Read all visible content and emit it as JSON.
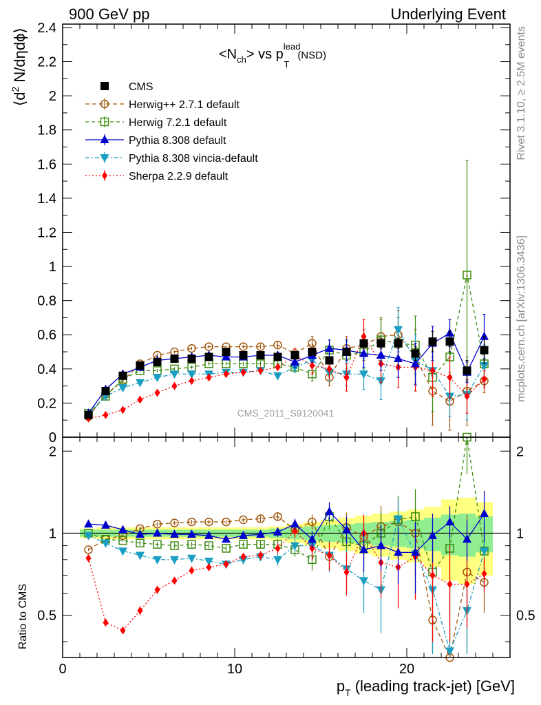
{
  "header": {
    "left": "900 GeV pp",
    "right": "Underlying Event"
  },
  "side_text": {
    "top": "Rivet 3.1.10, ≥ 2.5M events",
    "bottom": "mcplots.cern.ch [arXiv:1306.3436]"
  },
  "watermark": "CMS_2011_S9120041",
  "chart_data": {
    "type": "scatter",
    "title": {
      "main": "<N",
      "sub1": "ch",
      "mid": "> vs p",
      "sup": "lead",
      "sub2": "T",
      "tail": "(NSD)"
    },
    "xlabel": {
      "p": "p",
      "sub": "T",
      "rest": "(leading track-jet) [GeV]"
    },
    "ylabel": {
      "open": "⟨d",
      "sup": "2",
      "rest": " N/dηdϕ⟩"
    },
    "ratio_ylabel": "Ratio to CMS",
    "xlim": [
      0,
      26
    ],
    "ylim": [
      0,
      2.42
    ],
    "ratio_ylim": [
      0.35,
      2.25
    ],
    "legend_position": "top-left",
    "x_ticks": [
      "0",
      "10",
      "20"
    ],
    "y_ticks": [
      "0",
      "0.2",
      "0.4",
      "0.6",
      "0.8",
      "1",
      "1.2",
      "1.4",
      "1.6",
      "1.8",
      "2",
      "2.2",
      "2.4"
    ],
    "ratio_ticks": [
      "0.5",
      "1",
      "2"
    ],
    "x": [
      1.5,
      2.5,
      3.5,
      4.5,
      5.5,
      6.5,
      7.5,
      8.5,
      9.5,
      10.5,
      11.5,
      12.5,
      13.5,
      14.5,
      15.5,
      16.5,
      17.5,
      18.5,
      19.5,
      20.5,
      21.5,
      22.5,
      23.5,
      24.5
    ],
    "series": [
      {
        "name": "CMS",
        "color": "#000000",
        "marker": "square-filled",
        "dash": "",
        "values": [
          0.13,
          0.27,
          0.36,
          0.42,
          0.44,
          0.46,
          0.46,
          0.47,
          0.5,
          0.48,
          0.48,
          0.47,
          0.48,
          0.5,
          0.45,
          0.5,
          0.55,
          0.55,
          0.55,
          0.49,
          0.56,
          0.56,
          0.39,
          0.51
        ],
        "errors": [
          0.005,
          0.01,
          0.01,
          0.01,
          0.01,
          0.01,
          0.01,
          0.01,
          0.01,
          0.01,
          0.01,
          0.01,
          0.015,
          0.02,
          0.02,
          0.02,
          0.02,
          0.03,
          0.03,
          0.04,
          0.06,
          0.06,
          0.06,
          0.08
        ],
        "ratio": null,
        "band_inner": [
          0.03,
          0.03,
          0.03,
          0.03,
          0.03,
          0.03,
          0.03,
          0.03,
          0.03,
          0.03,
          0.03,
          0.04,
          0.05,
          0.06,
          0.07,
          0.08,
          0.09,
          0.1,
          0.11,
          0.12,
          0.14,
          0.17,
          0.18,
          0.15
        ],
        "band_outer": [
          0.04,
          0.05,
          0.05,
          0.05,
          0.05,
          0.05,
          0.05,
          0.05,
          0.05,
          0.05,
          0.05,
          0.06,
          0.08,
          0.1,
          0.12,
          0.14,
          0.16,
          0.18,
          0.2,
          0.22,
          0.25,
          0.33,
          0.35,
          0.3
        ]
      },
      {
        "name": "Herwig++ 2.7.1 default",
        "color": "#a0550b",
        "marker": "circle-open",
        "dash": "6,4",
        "values": [
          0.12,
          0.25,
          0.33,
          0.43,
          0.48,
          0.5,
          0.52,
          0.53,
          0.53,
          0.53,
          0.53,
          0.54,
          0.49,
          0.55,
          0.35,
          0.52,
          0.54,
          0.59,
          0.6,
          0.47,
          0.27,
          0.21,
          0.27,
          0.33
        ],
        "errors": [
          0.005,
          0.008,
          0.01,
          0.01,
          0.01,
          0.01,
          0.01,
          0.01,
          0.01,
          0.012,
          0.015,
          0.02,
          0.03,
          0.04,
          0.05,
          0.07,
          0.09,
          0.11,
          0.14,
          0.16,
          0.2,
          0.17,
          0.2,
          0.07
        ],
        "ratio": [
          0.87,
          0.95,
          0.98,
          1.04,
          1.08,
          1.09,
          1.1,
          1.1,
          1.1,
          1.12,
          1.13,
          1.15,
          1.03,
          1.1,
          0.82,
          1.05,
          0.97,
          1.06,
          1.1,
          1.0,
          0.48,
          0.35,
          0.72,
          0.66
        ],
        "ratio_err": [
          0.01,
          0.01,
          0.01,
          0.02,
          0.02,
          0.02,
          0.02,
          0.02,
          0.02,
          0.02,
          0.03,
          0.04,
          0.05,
          0.07,
          0.1,
          0.14,
          0.17,
          0.2,
          0.25,
          0.3,
          0.36,
          0.3,
          0.45,
          0.15
        ]
      },
      {
        "name": "Herwig 7.2.1 default",
        "color": "#3a8a0e",
        "marker": "square-open",
        "dash": "5,4",
        "values": [
          0.14,
          0.24,
          0.34,
          0.39,
          0.39,
          0.4,
          0.41,
          0.43,
          0.43,
          0.43,
          0.43,
          0.43,
          0.41,
          0.37,
          0.51,
          0.48,
          0.5,
          0.57,
          0.55,
          0.54,
          0.35,
          0.47,
          0.95,
          0.43
        ],
        "errors": [
          0.005,
          0.008,
          0.01,
          0.01,
          0.01,
          0.01,
          0.01,
          0.01,
          0.01,
          0.012,
          0.015,
          0.02,
          0.03,
          0.04,
          0.06,
          0.08,
          0.1,
          0.12,
          0.15,
          0.17,
          0.2,
          0.22,
          0.67,
          0.1
        ],
        "ratio": [
          1.0,
          0.95,
          0.94,
          0.92,
          0.91,
          0.9,
          0.91,
          0.9,
          0.88,
          0.91,
          0.91,
          0.91,
          0.87,
          0.8,
          1.15,
          0.93,
          0.9,
          1.0,
          1.12,
          1.15,
          0.72,
          0.88,
          2.25,
          0.86
        ],
        "ratio_err": [
          0.01,
          0.01,
          0.01,
          0.02,
          0.02,
          0.02,
          0.02,
          0.02,
          0.02,
          0.02,
          0.03,
          0.04,
          0.05,
          0.07,
          0.12,
          0.15,
          0.18,
          0.2,
          0.25,
          0.3,
          0.35,
          0.38,
          0.6,
          0.2
        ]
      },
      {
        "name": "Pythia 8.308 default",
        "color": "#0000cc",
        "marker": "triangle-up",
        "dash": "",
        "values": [
          0.14,
          0.28,
          0.37,
          0.41,
          0.45,
          0.46,
          0.47,
          0.48,
          0.47,
          0.47,
          0.48,
          0.48,
          0.44,
          0.48,
          0.52,
          0.51,
          0.49,
          0.48,
          0.46,
          0.43,
          0.55,
          0.61,
          0.38,
          0.59
        ],
        "errors": [
          0.005,
          0.008,
          0.01,
          0.01,
          0.01,
          0.01,
          0.01,
          0.01,
          0.01,
          0.012,
          0.015,
          0.02,
          0.03,
          0.04,
          0.05,
          0.06,
          0.08,
          0.09,
          0.11,
          0.12,
          0.1,
          0.08,
          0.06,
          0.13
        ],
        "ratio": [
          1.08,
          1.07,
          1.03,
          0.99,
          1.0,
          0.99,
          0.99,
          0.98,
          0.95,
          0.98,
          0.99,
          1.01,
          1.08,
          0.95,
          1.2,
          1.03,
          0.87,
          0.9,
          0.85,
          0.85,
          0.98,
          1.1,
          0.95,
          1.18
        ],
        "ratio_err": [
          0.01,
          0.01,
          0.01,
          0.02,
          0.02,
          0.02,
          0.02,
          0.02,
          0.02,
          0.02,
          0.03,
          0.04,
          0.05,
          0.07,
          0.1,
          0.12,
          0.15,
          0.17,
          0.2,
          0.25,
          0.2,
          0.15,
          0.16,
          0.25
        ]
      },
      {
        "name": "Pythia 8.308 vincia-default",
        "color": "#1a9ec1",
        "marker": "triangle-down",
        "dash": "6,3,2,3",
        "values": [
          0.13,
          0.24,
          0.29,
          0.32,
          0.35,
          0.37,
          0.37,
          0.37,
          0.38,
          0.38,
          0.39,
          0.36,
          0.41,
          0.45,
          0.38,
          0.37,
          0.37,
          0.33,
          0.63,
          0.45,
          0.39,
          0.24,
          0.25,
          0.42
        ],
        "errors": [
          0.005,
          0.008,
          0.01,
          0.01,
          0.01,
          0.01,
          0.01,
          0.01,
          0.01,
          0.012,
          0.015,
          0.02,
          0.03,
          0.04,
          0.05,
          0.07,
          0.09,
          0.11,
          0.13,
          0.15,
          0.15,
          0.12,
          0.15,
          0.12
        ],
        "ratio": [
          0.98,
          0.92,
          0.86,
          0.83,
          0.8,
          0.8,
          0.81,
          0.79,
          0.77,
          0.8,
          0.82,
          0.8,
          0.9,
          0.9,
          0.83,
          0.74,
          0.67,
          0.62,
          1.13,
          0.84,
          0.62,
          0.37,
          0.52,
          0.86
        ],
        "ratio_err": [
          0.01,
          0.01,
          0.01,
          0.02,
          0.02,
          0.02,
          0.02,
          0.02,
          0.02,
          0.02,
          0.03,
          0.04,
          0.05,
          0.08,
          0.11,
          0.14,
          0.16,
          0.19,
          0.22,
          0.25,
          0.28,
          0.2,
          0.3,
          0.25
        ]
      },
      {
        "name": "Sherpa 2.2.9 default",
        "color": "#ff0000",
        "marker": "diamond",
        "dash": "2,3",
        "values": [
          0.11,
          0.13,
          0.16,
          0.22,
          0.26,
          0.3,
          0.33,
          0.35,
          0.37,
          0.38,
          0.39,
          0.41,
          0.48,
          0.42,
          0.4,
          0.35,
          0.59,
          0.43,
          0.41,
          0.41,
          0.39,
          0.35,
          0.24,
          0.34
        ],
        "errors": [
          0.005,
          0.008,
          0.01,
          0.01,
          0.01,
          0.01,
          0.01,
          0.01,
          0.01,
          0.012,
          0.015,
          0.02,
          0.04,
          0.05,
          0.06,
          0.08,
          0.1,
          0.11,
          0.12,
          0.14,
          0.15,
          0.12,
          0.1,
          0.05
        ],
        "ratio": [
          0.81,
          0.47,
          0.44,
          0.52,
          0.62,
          0.67,
          0.73,
          0.75,
          0.77,
          0.82,
          0.83,
          0.88,
          1.02,
          0.88,
          0.83,
          0.72,
          1.0,
          0.78,
          0.75,
          0.82,
          0.7,
          0.65,
          0.65,
          0.71
        ],
        "ratio_err": [
          0.01,
          0.01,
          0.01,
          0.02,
          0.02,
          0.02,
          0.02,
          0.02,
          0.02,
          0.02,
          0.03,
          0.04,
          0.06,
          0.08,
          0.1,
          0.13,
          0.17,
          0.2,
          0.22,
          0.25,
          0.3,
          0.25,
          0.2,
          0.1
        ]
      }
    ]
  }
}
